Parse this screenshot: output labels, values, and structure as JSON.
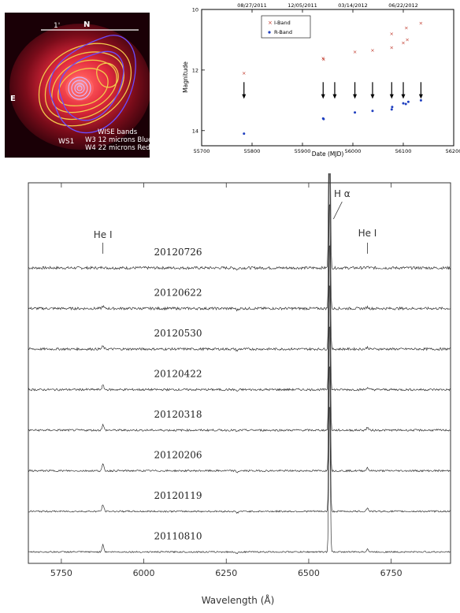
{
  "image_panel": {
    "north_label": "N",
    "east_label": "E",
    "scale_label": "1'",
    "source_label": "WS1",
    "legend_lines": [
      "WISE bands",
      "W3 12 microns Blue",
      "W4 22 microns Red"
    ],
    "colors": {
      "background": "#1a0006",
      "glow": "#ff2d2d",
      "w3_contours": "#6a4cff",
      "w4_contours": "#f2c94c"
    }
  },
  "chart_data": [
    {
      "type": "scatter",
      "xlabel": "Date (MJD)",
      "ylabel": "Magnitude",
      "xlim": [
        55700,
        56200
      ],
      "ylim": [
        14.5,
        10
      ],
      "y_inverted": true,
      "x_ticks": [
        55700,
        55800,
        55900,
        56000,
        56100,
        56200
      ],
      "y_ticks": [
        10,
        12,
        14
      ],
      "top_axis_labels": [
        "08/27/2011",
        "12/05/2011",
        "03/14/2012",
        "06/22/2012"
      ],
      "top_axis_mjd": [
        55800,
        55900,
        56000,
        56100
      ],
      "legend_position": "top-left",
      "series": [
        {
          "name": "I-Band",
          "marker": "x",
          "color": "#c0392b",
          "x": [
            55784,
            55941,
            55942,
            56004,
            56039,
            56077,
            56077,
            56100,
            56106,
            56108,
            56135
          ],
          "y": [
            12.1,
            11.6,
            11.65,
            11.4,
            11.35,
            10.8,
            11.25,
            11.1,
            10.6,
            11.0,
            10.45
          ]
        },
        {
          "name": "R-Band",
          "marker": "dot",
          "color": "#1f3fbf",
          "x": [
            55784,
            55941,
            55942,
            56004,
            56039,
            56077,
            56078,
            56100,
            56105,
            56110,
            56135
          ],
          "y": [
            14.1,
            13.6,
            13.62,
            13.4,
            13.35,
            13.3,
            13.22,
            13.1,
            13.12,
            13.05,
            13.0
          ]
        }
      ],
      "arrow_mjd": [
        55784,
        55941,
        55964,
        56004,
        56039,
        56077,
        56100,
        56135
      ],
      "grid": false
    },
    {
      "type": "line",
      "xlabel": "Wavelength (Å)",
      "xlim": [
        5650,
        6930
      ],
      "x_ticks": [
        5750,
        6000,
        6250,
        6500,
        6750
      ],
      "grid": false,
      "line_labels": [
        {
          "text": "He I",
          "x": 5876,
          "role": "label"
        },
        {
          "text": "H α",
          "x": 6563,
          "role": "label"
        },
        {
          "text": "He I",
          "x": 6678,
          "role": "label"
        }
      ],
      "line_features": [
        {
          "x": 5876,
          "amp": [
            0.12,
            0.22,
            0.28,
            0.42,
            0.52,
            0.62,
            0.66,
            0.72
          ]
        },
        {
          "x": 6563,
          "amp": [
            3.0,
            3.0,
            3.0,
            3.0,
            3.0,
            3.0,
            3.0,
            3.0
          ]
        },
        {
          "x": 6678,
          "amp": [
            0.1,
            0.14,
            0.18,
            0.22,
            0.28,
            0.32,
            0.34,
            0.3
          ]
        }
      ],
      "series": [
        {
          "name": "20120726"
        },
        {
          "name": "20120622"
        },
        {
          "name": "20120530"
        },
        {
          "name": "20120422"
        },
        {
          "name": "20120318"
        },
        {
          "name": "20120206"
        },
        {
          "name": "20120119"
        },
        {
          "name": "20110810"
        }
      ]
    }
  ]
}
